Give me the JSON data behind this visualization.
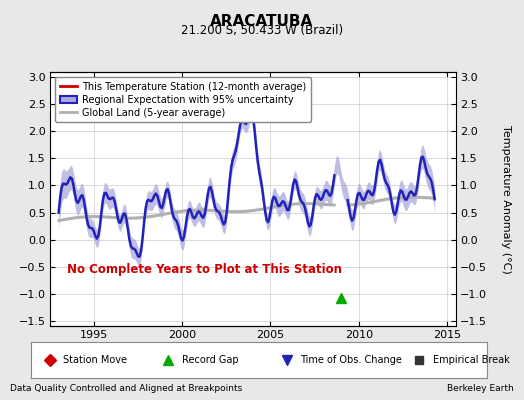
{
  "title": "ARACATUBA",
  "subtitle": "21.200 S, 50.433 W (Brazil)",
  "ylabel": "Temperature Anomaly (°C)",
  "xlim": [
    1992.5,
    2015.5
  ],
  "ylim": [
    -1.6,
    3.1
  ],
  "yticks": [
    -1.5,
    -1.0,
    -0.5,
    0.0,
    0.5,
    1.0,
    1.5,
    2.0,
    2.5,
    3.0
  ],
  "xticks": [
    1995,
    2000,
    2005,
    2010,
    2015
  ],
  "bg_color": "#e8e8e8",
  "plot_bg_color": "#ffffff",
  "annotation_text": "No Complete Years to Plot at This Station",
  "annotation_color": "#cc0000",
  "footer_left": "Data Quality Controlled and Aligned at Breakpoints",
  "footer_right": "Berkeley Earth",
  "record_gap_x": 2009.0,
  "vertical_line_x": 2009.0,
  "regional_color": "#2222bb",
  "regional_fill_color": "#aaaadd",
  "global_land_color": "#b0b0b0",
  "station_color": "#cc0000"
}
